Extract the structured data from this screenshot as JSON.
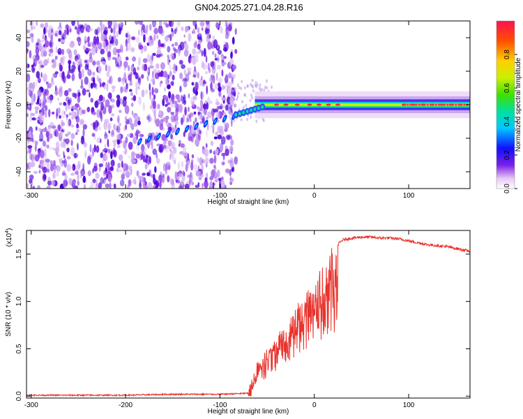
{
  "title": "GN04.2025.271.04.28.R16",
  "colors": {
    "snr_line": "#e8332c",
    "frame": "#000000"
  },
  "colorbar": {
    "label": "Normalized spectral amplitude",
    "ticks": [
      "0.0",
      "0.2",
      "0.4",
      "0.6",
      "0.8"
    ],
    "tick_values": [
      0.0,
      0.2,
      0.4,
      0.6,
      0.8
    ],
    "range": [
      0,
      1
    ]
  },
  "chart_data": [
    {
      "type": "heatmap",
      "xlabel": "Height of straight line (km)",
      "ylabel": "Frequency (Hz)",
      "xlim": [
        -305,
        165
      ],
      "ylim": [
        -50,
        50
      ],
      "xticks": [
        -300,
        -200,
        -100,
        0,
        100
      ],
      "xtick_labels": [
        "-300",
        "-200",
        "-100",
        "0",
        "100"
      ],
      "yticks": [
        -40,
        -20,
        0,
        20,
        40
      ],
      "ytick_labels": [
        "-40",
        "-20",
        "0",
        "20",
        "40"
      ],
      "description_values": {
        "noise_region_km": [
          -305,
          -83
        ],
        "signal_onset_km": -83,
        "central_frequency_hz": 0,
        "signal_band_halfwidth_hz": [
          2,
          8
        ]
      }
    },
    {
      "type": "line",
      "xlabel": "Height of straight line (km)",
      "ylabel": "SNR (10 * v/v)",
      "y_multiplier": "(x10",
      "y_multiplier_exp": "4",
      "xlim": [
        -305,
        165
      ],
      "ylim": [
        -0.02,
        1.75
      ],
      "xticks": [
        -300,
        -200,
        -100,
        0,
        100
      ],
      "xtick_labels": [
        "-300",
        "-200",
        "-100",
        "0",
        "100"
      ],
      "yticks": [
        0.0,
        0.5,
        1.0,
        1.5
      ],
      "ytick_labels": [
        "0.0",
        "0.5",
        "1.0",
        "1.5"
      ],
      "series": [
        {
          "x": [
            -305,
            -250,
            -200,
            -150,
            -100,
            -70,
            -65,
            -60,
            -55,
            -50,
            -45,
            -40,
            -35,
            -30,
            -25,
            -20,
            -15,
            -10,
            -5,
            0,
            5,
            10,
            15,
            20,
            25,
            30,
            40,
            50,
            60,
            70,
            80,
            90,
            100,
            110,
            120,
            130,
            140,
            150,
            160,
            165
          ],
          "y": [
            0.01,
            0.01,
            0.01,
            0.02,
            0.02,
            0.03,
            0.15,
            0.3,
            0.35,
            0.45,
            0.55,
            0.6,
            0.7,
            0.8,
            0.85,
            0.95,
            1.0,
            1.05,
            1.1,
            1.15,
            1.25,
            1.35,
            1.45,
            1.55,
            1.6,
            1.65,
            1.67,
            1.68,
            1.68,
            1.67,
            1.67,
            1.66,
            1.64,
            1.62,
            1.6,
            1.59,
            1.58,
            1.56,
            1.54,
            1.53
          ]
        }
      ]
    }
  ]
}
